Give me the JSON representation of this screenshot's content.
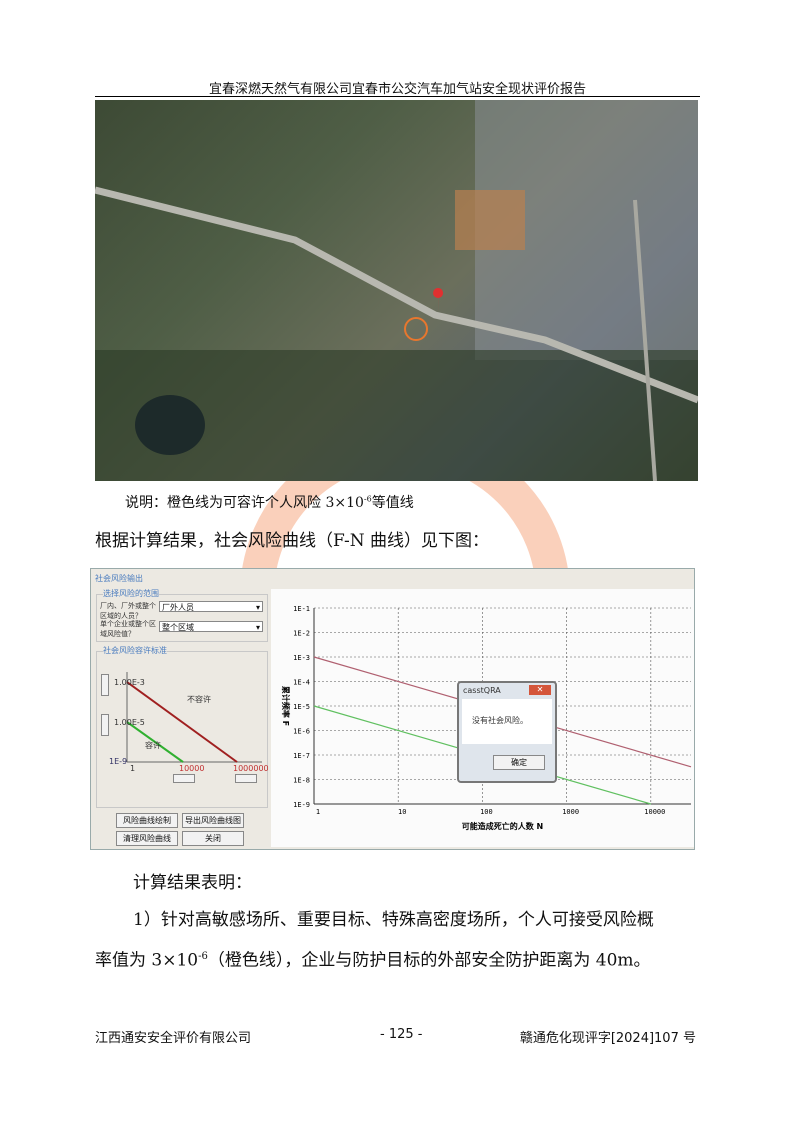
{
  "header": {
    "title": "宜春深燃天然气有限公司宜春市公交汽车加气站安全现状评价报告"
  },
  "map": {
    "caption_prefix": "说明：橙色线为可容许个人风险 3×10",
    "caption_exp": "-6",
    "caption_suffix": "等值线",
    "colors": {
      "contour": "#e8772e",
      "marker": "#e03030"
    }
  },
  "intro": "根据计算结果，社会风险曲线（F-N 曲线）见下图：",
  "software": {
    "window_title": "社会风险输出",
    "range_group": "选择风险的范围",
    "q1_label": "厂内、厂外或整个区域的人员？",
    "q1_value": "厂外人员",
    "q2_label": "单个企业或整个区域风险值？",
    "q2_value": "整个区域",
    "criteria_group": "社会风险容许标准",
    "upper_value": "1.00E-3",
    "lower_value": "1.00E-5",
    "min_value": "1E-9",
    "x_start": "1",
    "x_mid": "10000",
    "x_end": "1000000",
    "label_intolerable": "不容许",
    "label_tolerable": "容许",
    "buttons": [
      "风险曲线绘制",
      "导出风险曲线图",
      "清理风险曲线",
      "关闭"
    ],
    "dialog": {
      "title": "casstQRA",
      "message": "没有社会风险。",
      "ok": "确定"
    }
  },
  "chart_data": {
    "type": "line",
    "xlabel": "可能造成死亡的人数 N",
    "ylabel": "累计频率 F",
    "x_scale": "log",
    "y_scale": "log",
    "xlim": [
      1,
      30000
    ],
    "ylim": [
      1e-09,
      0.1
    ],
    "x_ticks": [
      "1",
      "10",
      "100",
      "1000",
      "10000"
    ],
    "y_ticks": [
      "1E-1",
      "1E-2",
      "1E-3",
      "1E-4",
      "1E-5",
      "1E-6",
      "1E-7",
      "1E-8",
      "1E-9"
    ],
    "grid": true,
    "series": [
      {
        "color": "#b06070",
        "points": [
          [
            1,
            0.001
          ],
          [
            30000,
            3.3e-08
          ]
        ]
      },
      {
        "color": "#60c060",
        "points": [
          [
            1,
            1e-05
          ],
          [
            10000,
            1e-09
          ]
        ]
      }
    ]
  },
  "results": {
    "heading": "计算结果表明：",
    "item1_a": "1）针对高敏感场所、重要目标、特殊高密度场所，个人可接受风险概",
    "item1_b_prefix": "率值为 3×10",
    "item1_b_exp": "-6",
    "item1_b_suffix": "（橙色线），企业与防护目标的外部安全防护距离为 40m。"
  },
  "footer": {
    "company": "江西通安安全评价有限公司",
    "page": "- 125 -",
    "doc_no": "赣通危化现评字[2024]107 号"
  }
}
